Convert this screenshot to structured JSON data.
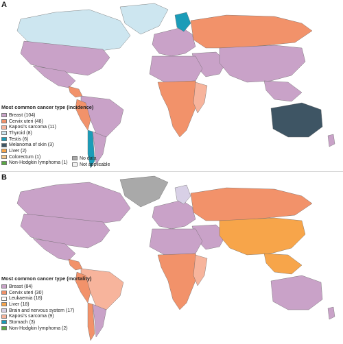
{
  "panels": [
    {
      "letter": "A",
      "legend_title": "Most common cancer type (incidence)",
      "legend": [
        {
          "label": "Breast (104)",
          "color": "#c9a2c8"
        },
        {
          "label": "Cervix uteri (48)",
          "color": "#f2926a"
        },
        {
          "label": "Kaposi's sarcoma (11)",
          "color": "#f7b49c"
        },
        {
          "label": "Thyroid (8)",
          "color": "#cde6f0"
        },
        {
          "label": "Testis (6)",
          "color": "#1b9cb8"
        },
        {
          "label": "Melanoma of skin (3)",
          "color": "#3e5564"
        },
        {
          "label": "Liver (2)",
          "color": "#f7a54a"
        },
        {
          "label": "Colorectum (1)",
          "color": "#f5c98d"
        },
        {
          "label": "Non-Hodgkin lymphoma (1)",
          "color": "#5aa844"
        }
      ],
      "extra_legend": [
        {
          "label": "No data",
          "color": "#a9a9a9"
        },
        {
          "label": "Not applicable",
          "color": "#f1f1f1"
        }
      ],
      "regions": {
        "greenland": "#cde6f0",
        "canada": "#cde6f0",
        "usa": "#c9a2c8",
        "mexico": "#c9a2c8",
        "central_america": "#f2926a",
        "south_america_north": "#c9a2c8",
        "south_america_west": "#f2926a",
        "chile": "#1b9cb8",
        "argentina": "#c9a2c8",
        "europe": "#c9a2c8",
        "scandinavia": "#1b9cb8",
        "russia": "#f2926a",
        "middle_east": "#c9a2c8",
        "north_africa": "#c9a2c8",
        "sub_saharan_africa": "#f2926a",
        "east_africa": "#f7b49c",
        "asia": "#c9a2c8",
        "southeast_asia": "#c9a2c8",
        "australia": "#3e5564",
        "new_zealand": "#c9a2c8"
      }
    },
    {
      "letter": "B",
      "legend_title": "Most common cancer type (mortality)",
      "legend": [
        {
          "label": "Breast (84)",
          "color": "#c9a2c8"
        },
        {
          "label": "Cervix uteri (30)",
          "color": "#f2926a"
        },
        {
          "label": "Leukaemia (18)",
          "color": "#ffffff"
        },
        {
          "label": "Liver (18)",
          "color": "#f7a54a"
        },
        {
          "label": "Brain and nervous system (17)",
          "color": "#d8d0e6"
        },
        {
          "label": "Kaposi's sarcoma (9)",
          "color": "#f7b49c"
        },
        {
          "label": "Stomach (3)",
          "color": "#1b9cb8"
        },
        {
          "label": "Non-Hodgkin lymphoma (2)",
          "color": "#5aa844"
        }
      ],
      "extra_legend": [],
      "regions": {
        "greenland": "#a9a9a9",
        "canada": "#c9a2c8",
        "usa": "#c9a2c8",
        "mexico": "#c9a2c8",
        "central_america": "#f2926a",
        "south_america_north": "#f7b49c",
        "south_america_west": "#f2926a",
        "chile": "#f2926a",
        "argentina": "#c9a2c8",
        "europe": "#c9a2c8",
        "scandinavia": "#d8d0e6",
        "russia": "#f2926a",
        "middle_east": "#c9a2c8",
        "north_africa": "#c9a2c8",
        "sub_saharan_africa": "#f2926a",
        "east_africa": "#f7b49c",
        "asia": "#f7a54a",
        "southeast_asia": "#f7a54a",
        "australia": "#c9a2c8",
        "new_zealand": "#c9a2c8"
      }
    }
  ]
}
